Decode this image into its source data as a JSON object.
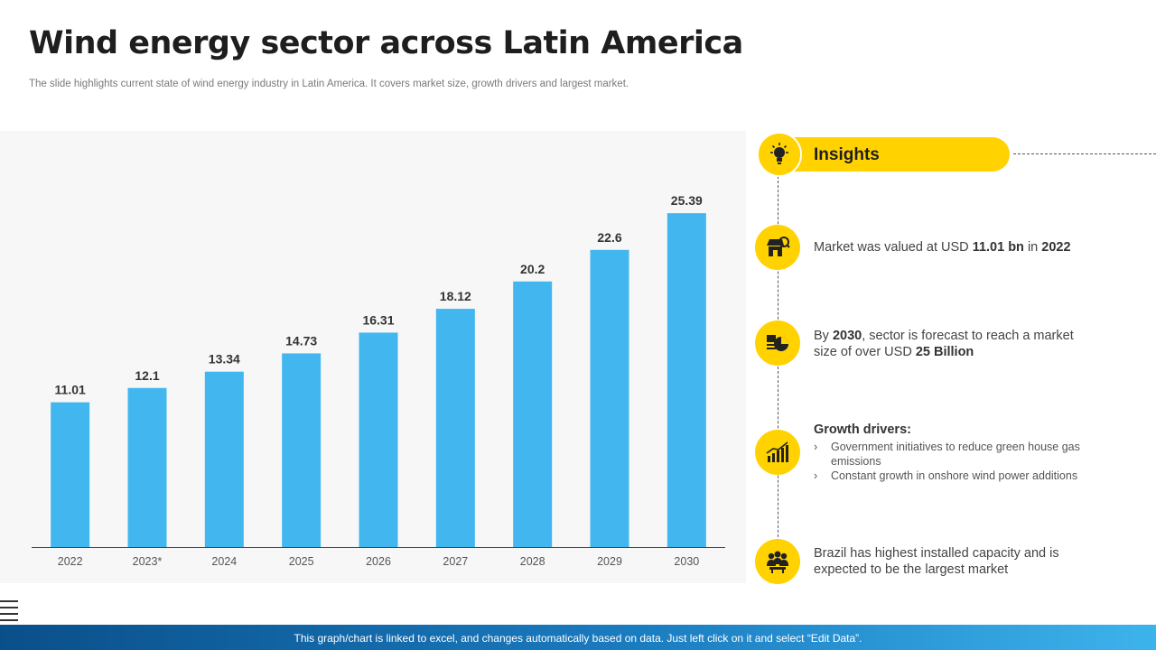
{
  "title": "Wind energy sector across Latin America",
  "subtitle": "The slide highlights current state of wind energy industry in Latin America. It covers market size, growth drivers and largest market.",
  "colors": {
    "bar": "#42b7ef",
    "accent": "#ffd200",
    "footer_start": "#0a4f8a",
    "footer_end": "#3db3ec"
  },
  "chart_data": {
    "type": "bar",
    "categories": [
      "2022",
      "2023*",
      "2024",
      "2025",
      "2026",
      "2027",
      "2028",
      "2029",
      "2030"
    ],
    "values": [
      11.01,
      12.1,
      13.34,
      14.73,
      16.31,
      18.12,
      20.2,
      22.6,
      25.39
    ],
    "labels": [
      "11.01",
      "12.1",
      "13.34",
      "14.73",
      "16.31",
      "18.12",
      "20.2",
      "22.6",
      "25.39"
    ],
    "title": "",
    "xlabel": "",
    "ylabel": "",
    "ylim": [
      0,
      26.5
    ],
    "grid": false,
    "legend": "none"
  },
  "insights": {
    "header": "Insights",
    "header_icon": "lightbulb-icon",
    "market_value": {
      "icon": "store-search-icon",
      "p1": "Market was valued at USD ",
      "b1": "11.01 bn",
      "p2": " in ",
      "b2": "2022"
    },
    "forecast": {
      "icon": "pie-chart-icon",
      "p1": "By ",
      "b1": "2030",
      "p2": ", sector is forecast to reach a market size of over USD ",
      "b2": "25 Billion"
    },
    "drivers": {
      "icon": "bar-growth-icon",
      "title": "Growth drivers:",
      "items": [
        "Government initiatives to reduce green house gas emissions",
        "Constant growth in onshore wind power additions"
      ]
    },
    "brazil": {
      "icon": "people-group-icon",
      "text": "Brazil has highest installed capacity and is expected to be the largest market"
    }
  },
  "footer": {
    "text": "This graph/chart is linked to excel, and changes automatically based on data. Just left click on it and select “Edit Data”."
  }
}
